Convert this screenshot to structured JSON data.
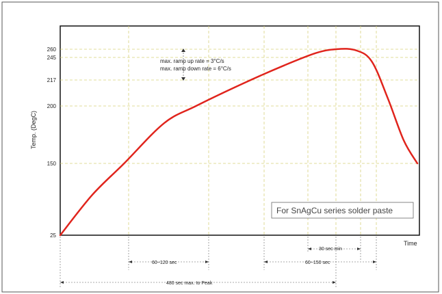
{
  "chart_data": {
    "type": "line",
    "title": "",
    "xlabel": "Time",
    "ylabel": "Temp. (DegC)",
    "y_ticks": [
      25,
      150,
      200,
      217,
      245,
      260
    ],
    "y_tick_labels": [
      "25",
      "150",
      "200",
      "217",
      "245",
      "260"
    ],
    "ylim": [
      25,
      275
    ],
    "grid": true,
    "line_color": "#e0241c",
    "profile_points": [
      {
        "time_sec": 0,
        "temp": 25
      },
      {
        "time_sec": 40,
        "temp": 95
      },
      {
        "time_sec": 80,
        "temp": 150
      },
      {
        "time_sec": 130,
        "temp": 185
      },
      {
        "time_sec": 170,
        "temp": 200
      },
      {
        "time_sec": 230,
        "temp": 215
      },
      {
        "time_sec": 280,
        "temp": 235
      },
      {
        "time_sec": 320,
        "temp": 253
      },
      {
        "time_sec": 345,
        "temp": 260
      },
      {
        "time_sec": 370,
        "temp": 258
      },
      {
        "time_sec": 390,
        "temp": 240
      },
      {
        "time_sec": 410,
        "temp": 205
      },
      {
        "time_sec": 430,
        "temp": 170
      },
      {
        "time_sec": 447,
        "temp": 150
      }
    ],
    "annotations": {
      "rate_up": "max. ramp up rate = 3°C/s",
      "rate_down": "max. ramp down rate = 6°C/s",
      "note_box": "For SnAgCu series solder paste",
      "interval_1": "60~120 sec",
      "interval_2": "60~150 sec",
      "interval_3": "30 sec min",
      "interval_4": "480 sec max. to Peak"
    }
  }
}
